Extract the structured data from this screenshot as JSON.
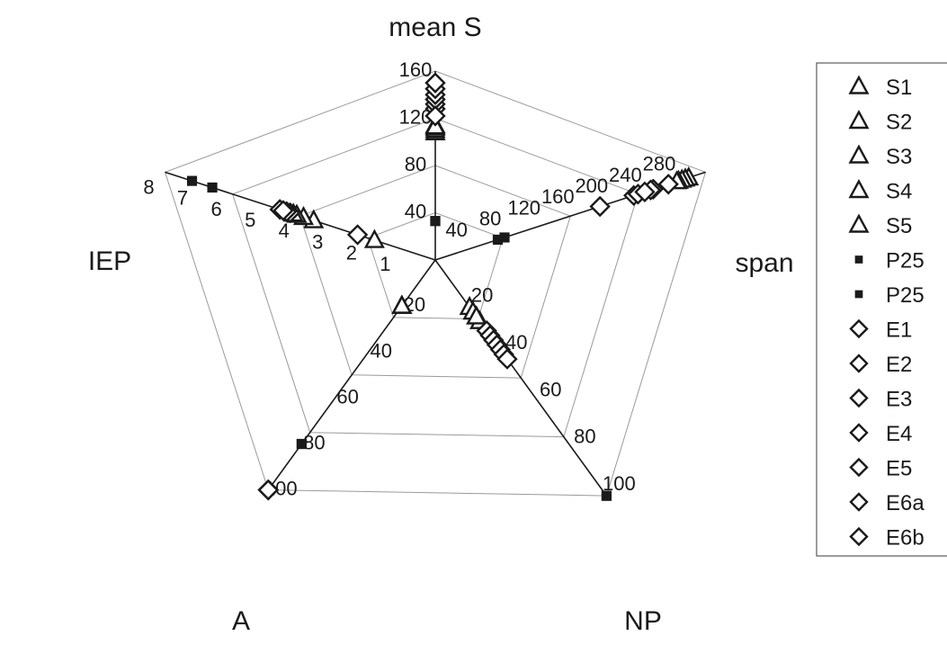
{
  "chart_data": {
    "type": "radar",
    "colors": {
      "line": "#1a1a1a",
      "grid": "#9a9a9a"
    },
    "axes": [
      {
        "name": "mean S",
        "max": 160,
        "ticks": [
          {
            "value": 40,
            "label": "40"
          },
          {
            "value": 80,
            "label": "80"
          },
          {
            "value": 120,
            "label": "120"
          },
          {
            "value": 160,
            "label": "160"
          }
        ]
      },
      {
        "name": "span",
        "max": 320,
        "ticks": [
          {
            "value": 40,
            "label": "40"
          },
          {
            "value": 80,
            "label": "80"
          },
          {
            "value": 120,
            "label": "120"
          },
          {
            "value": 160,
            "label": "160"
          },
          {
            "value": 200,
            "label": "200"
          },
          {
            "value": 240,
            "label": "240"
          },
          {
            "value": 280,
            "label": "280"
          }
        ]
      },
      {
        "name": "NP",
        "max": 100,
        "ticks": [
          {
            "value": 20,
            "label": "20"
          },
          {
            "value": 40,
            "label": "40"
          },
          {
            "value": 60,
            "label": "60"
          },
          {
            "value": 80,
            "label": "80"
          },
          {
            "value": 100,
            "label": "100"
          }
        ]
      },
      {
        "name": "A",
        "max": 100,
        "ticks": [
          {
            "value": 20,
            "label": "20"
          },
          {
            "value": 40,
            "label": "40"
          },
          {
            "value": 60,
            "label": "60"
          },
          {
            "value": 80,
            "label": "80"
          },
          {
            "value": 100,
            "label": "100"
          }
        ]
      },
      {
        "name": "IEP",
        "max": 8,
        "ticks": [
          {
            "value": 1,
            "label": "1"
          },
          {
            "value": 2,
            "label": "2"
          },
          {
            "value": 3,
            "label": "3"
          },
          {
            "value": 4,
            "label": "4"
          },
          {
            "value": 5,
            "label": "5"
          },
          {
            "value": 6,
            "label": "6"
          },
          {
            "value": 7,
            "label": "7"
          },
          {
            "value": 8,
            "label": "8"
          }
        ]
      }
    ],
    "series": [
      {
        "name": "S1",
        "marker": "triangle",
        "values": [
          108,
          300,
          20,
          20,
          1.8
        ]
      },
      {
        "name": "S2",
        "marker": "triangle",
        "values": [
          110,
          296,
          22,
          20,
          3.6
        ]
      },
      {
        "name": "S3",
        "marker": "triangle",
        "values": [
          112,
          292,
          24,
          20,
          3.9
        ]
      },
      {
        "name": "S4",
        "marker": "triangle",
        "values": [
          114,
          288,
          26,
          20,
          4.1
        ]
      },
      {
        "name": "S5",
        "marker": "triangle",
        "values": [
          113,
          286,
          24,
          20,
          4.2
        ]
      },
      {
        "name": "P25",
        "marker": "square",
        "values": [
          33,
          74,
          100,
          80,
          7.2
        ]
      },
      {
        "name": "P25",
        "marker": "square",
        "values": [
          33,
          82,
          100,
          80,
          6.6
        ]
      },
      {
        "name": "E1",
        "marker": "diamond",
        "values": [
          128,
          195,
          30,
          100,
          2.3
        ]
      },
      {
        "name": "E2",
        "marker": "diamond",
        "values": [
          132,
          235,
          32,
          100,
          4.3
        ]
      },
      {
        "name": "E3",
        "marker": "diamond",
        "values": [
          136,
          240,
          34,
          100,
          4.4
        ]
      },
      {
        "name": "E4",
        "marker": "diamond",
        "values": [
          140,
          258,
          36,
          100,
          4.5
        ]
      },
      {
        "name": "E5",
        "marker": "diamond",
        "values": [
          145,
          276,
          38,
          100,
          4.6
        ]
      },
      {
        "name": "E6a",
        "marker": "diamond",
        "values": [
          150,
          255,
          40,
          100,
          4.4
        ]
      },
      {
        "name": "E6b",
        "marker": "diamond",
        "values": [
          122,
          248,
          42,
          100,
          4.5
        ]
      }
    ],
    "legend": "right"
  }
}
